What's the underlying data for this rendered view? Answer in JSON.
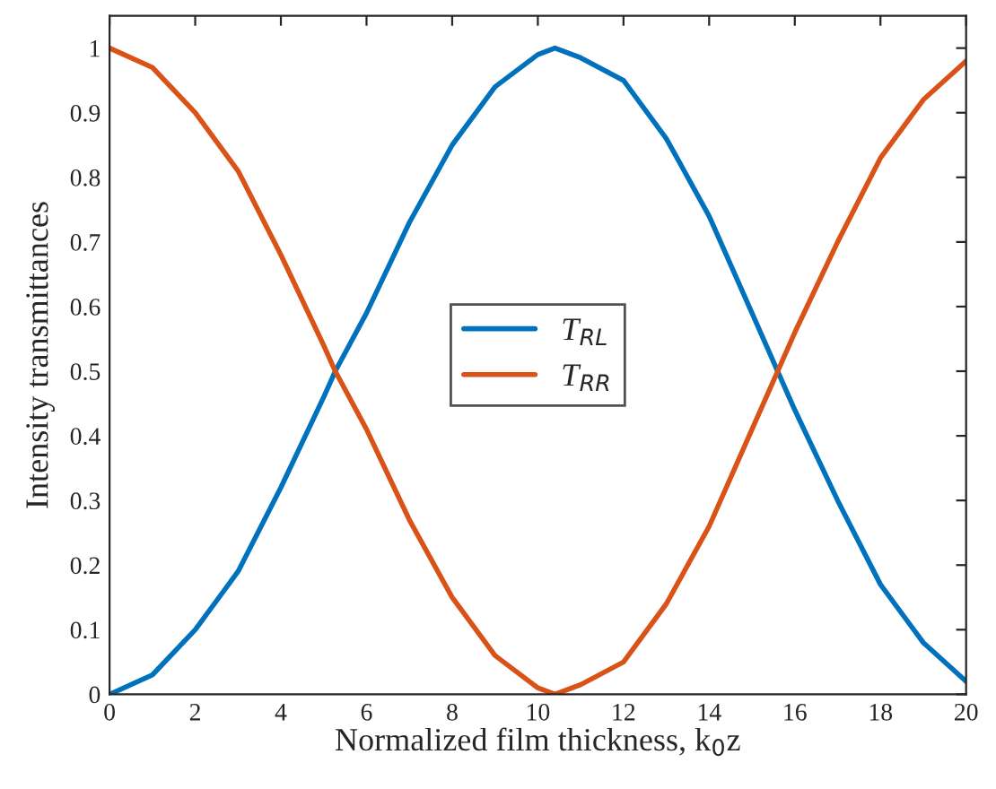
{
  "chart_data": {
    "type": "line",
    "xlabel": "Normalized film thickness, k$_{0}$z",
    "ylabel": "Intensity transmittances",
    "xlim": [
      0,
      20
    ],
    "ylim": [
      0,
      1.05
    ],
    "xticks": [
      0,
      2,
      4,
      6,
      8,
      10,
      12,
      14,
      16,
      18,
      20
    ],
    "yticks": [
      0,
      0.1,
      0.2,
      0.3,
      0.4,
      0.5,
      0.6,
      0.7,
      0.8,
      0.9,
      1
    ],
    "grid": false,
    "legend": "center",
    "line_style": "solid",
    "marker": "none",
    "x": [
      0,
      1,
      2,
      3,
      4,
      5,
      5.27,
      6,
      7,
      8,
      9,
      10,
      10.4,
      11,
      12,
      13,
      14,
      15,
      15.6,
      16,
      17,
      18,
      19,
      20
    ],
    "series": [
      {
        "name": "T$_{RL}$",
        "color": "#0072bd",
        "values": [
          0,
          0.03,
          0.1,
          0.19,
          0.32,
          0.46,
          0.5,
          0.59,
          0.73,
          0.85,
          0.94,
          0.99,
          1.0,
          0.985,
          0.95,
          0.86,
          0.74,
          0.59,
          0.5,
          0.44,
          0.3,
          0.17,
          0.08,
          0.02
        ]
      },
      {
        "name": "T$_{RR}$",
        "color": "#d95319",
        "values": [
          1,
          0.97,
          0.9,
          0.81,
          0.68,
          0.54,
          0.5,
          0.41,
          0.27,
          0.15,
          0.06,
          0.01,
          0,
          0.015,
          0.05,
          0.14,
          0.26,
          0.41,
          0.5,
          0.56,
          0.7,
          0.83,
          0.92,
          0.98
        ]
      }
    ]
  }
}
